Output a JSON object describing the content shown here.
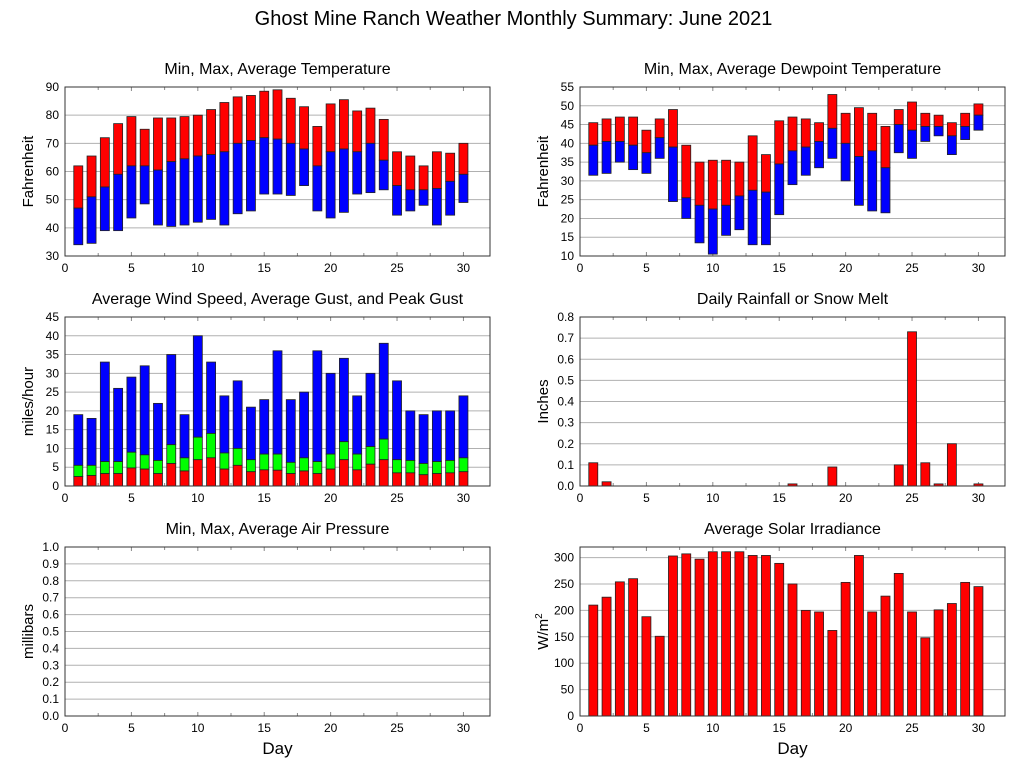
{
  "title": "Ghost Mine Ranch Weather Monthly Summary: June 2021",
  "chart_data": [
    {
      "id": "temperature",
      "type": "bar",
      "stacked_range": true,
      "title": "Min, Max, Average Temperature",
      "xlabel": "",
      "ylabel": "Fahrenheit",
      "xlim": [
        0,
        32
      ],
      "ylim": [
        30,
        90
      ],
      "xticks": [
        0,
        5,
        10,
        15,
        20,
        25,
        30
      ],
      "yticks": [
        30,
        40,
        50,
        60,
        70,
        80,
        90
      ],
      "ytick_labels": [
        "30",
        "40",
        "50",
        "60",
        "70",
        "80",
        "90"
      ],
      "grid": true,
      "x": [
        1,
        2,
        3,
        4,
        5,
        6,
        7,
        8,
        9,
        10,
        11,
        12,
        13,
        14,
        15,
        16,
        17,
        18,
        19,
        20,
        21,
        22,
        23,
        24,
        25,
        26,
        27,
        28,
        29,
        30
      ],
      "series": [
        {
          "name": "Max",
          "color": "#ff0000",
          "values": [
            62,
            65.5,
            72,
            77,
            79.5,
            75,
            79,
            79,
            79.5,
            80,
            82,
            84.5,
            86.5,
            87,
            88.5,
            89,
            86,
            83,
            76,
            84,
            85.5,
            81.5,
            82.5,
            78.5,
            67,
            65.5,
            62,
            67,
            66.5,
            70
          ]
        },
        {
          "name": "Average",
          "color": "#0000ff",
          "values": [
            47,
            51,
            54.5,
            59,
            62,
            62,
            60.5,
            63.5,
            64.5,
            65.5,
            66,
            67,
            70,
            71,
            72,
            71.5,
            70,
            68,
            62,
            67,
            68,
            67,
            70,
            64,
            55,
            53.5,
            53.5,
            54,
            56.5,
            59
          ]
        },
        {
          "name": "Min",
          "color": "#ffffff",
          "values": [
            34,
            34.5,
            39,
            39,
            43.5,
            48.5,
            41,
            40.5,
            41,
            42,
            43,
            41,
            45,
            46,
            52,
            52,
            51.5,
            55,
            46,
            43.5,
            45.5,
            52,
            52.5,
            53.5,
            44.5,
            46,
            48,
            41,
            44.5,
            49
          ]
        }
      ]
    },
    {
      "id": "dewpoint",
      "type": "bar",
      "stacked_range": true,
      "title": "Min, Max, Average Dewpoint Temperature",
      "xlabel": "",
      "ylabel": "Fahrenheit",
      "xlim": [
        0,
        32
      ],
      "ylim": [
        10,
        55
      ],
      "xticks": [
        0,
        5,
        10,
        15,
        20,
        25,
        30
      ],
      "yticks": [
        10,
        15,
        20,
        25,
        30,
        35,
        40,
        45,
        50,
        55
      ],
      "ytick_labels": [
        "10",
        "15",
        "20",
        "25",
        "30",
        "35",
        "40",
        "45",
        "50",
        "55"
      ],
      "grid": true,
      "x": [
        1,
        2,
        3,
        4,
        5,
        6,
        7,
        8,
        9,
        10,
        11,
        12,
        13,
        14,
        15,
        16,
        17,
        18,
        19,
        20,
        21,
        22,
        23,
        24,
        25,
        26,
        27,
        28,
        29,
        30
      ],
      "series": [
        {
          "name": "Max",
          "color": "#ff0000",
          "values": [
            45.5,
            46.5,
            47,
            47,
            43.5,
            46.5,
            49,
            39.5,
            35,
            35.5,
            35.5,
            35,
            42,
            37,
            46,
            47,
            46.5,
            45.5,
            53,
            48,
            49.5,
            48,
            44.5,
            49,
            51,
            48,
            47.5,
            45.5,
            48,
            50.5
          ]
        },
        {
          "name": "Average",
          "color": "#0000ff",
          "values": [
            39.5,
            40.5,
            40.5,
            39.5,
            37.5,
            41.5,
            39,
            25.5,
            23.5,
            22.5,
            23.5,
            26,
            27.5,
            27,
            34.5,
            38,
            39,
            40.5,
            44,
            40,
            36.5,
            38,
            33.5,
            45,
            43.5,
            44.5,
            44.5,
            42,
            44.5,
            47.5
          ]
        },
        {
          "name": "Min",
          "color": "#ffffff",
          "values": [
            31.5,
            32,
            35,
            33,
            32,
            36,
            24.5,
            20,
            13.5,
            10.5,
            15.5,
            17,
            13,
            13,
            21,
            29,
            31.5,
            33.5,
            36,
            30,
            23.5,
            22,
            21.5,
            37.5,
            36,
            40.5,
            42,
            37,
            41,
            43.5
          ]
        }
      ]
    },
    {
      "id": "wind",
      "type": "bar",
      "stacked_range": false,
      "title": "Average Wind Speed, Average Gust, and Peak Gust",
      "xlabel": "",
      "ylabel": "miles/hour",
      "xlim": [
        0,
        32
      ],
      "ylim": [
        0,
        45
      ],
      "xticks": [
        0,
        5,
        10,
        15,
        20,
        25,
        30
      ],
      "yticks": [
        0,
        5,
        10,
        15,
        20,
        25,
        30,
        35,
        40,
        45
      ],
      "ytick_labels": [
        "0",
        "5",
        "10",
        "15",
        "20",
        "25",
        "30",
        "35",
        "40",
        "45"
      ],
      "grid": true,
      "x": [
        1,
        2,
        3,
        4,
        5,
        6,
        7,
        8,
        9,
        10,
        11,
        12,
        13,
        14,
        15,
        16,
        17,
        18,
        19,
        20,
        21,
        22,
        23,
        24,
        25,
        26,
        27,
        28,
        29,
        30
      ],
      "series": [
        {
          "name": "Peak Gust",
          "color": "#0000ff",
          "values": [
            19,
            18,
            33,
            26,
            29,
            32,
            22,
            35,
            19,
            40,
            33,
            24,
            28,
            21,
            23,
            36,
            23,
            25,
            36,
            30,
            34,
            24,
            30,
            38,
            28,
            20,
            19,
            20,
            20,
            24
          ]
        },
        {
          "name": "Average Gust",
          "color": "#00ff00",
          "values": [
            5.5,
            5.5,
            6.5,
            6.5,
            9,
            8.3,
            6.8,
            11,
            7.5,
            13,
            14,
            8.8,
            10,
            7,
            8.5,
            8.5,
            6.3,
            7.5,
            6.5,
            8.5,
            11.8,
            8.5,
            10.5,
            12.5,
            7,
            6.8,
            6,
            6.5,
            6.8,
            7.5
          ]
        },
        {
          "name": "Average Wind Speed",
          "color": "#ff0000",
          "values": [
            2.5,
            2.8,
            3.3,
            3.3,
            4.8,
            4.5,
            3.3,
            6,
            4,
            7,
            7.5,
            4.5,
            5.5,
            3.8,
            4.3,
            4.2,
            3.3,
            4,
            3.3,
            4.5,
            7,
            4.3,
            5.8,
            7,
            3.5,
            3.5,
            3,
            3.3,
            3.5,
            3.8
          ]
        }
      ]
    },
    {
      "id": "rainfall",
      "type": "bar",
      "title": "Daily Rainfall or Snow Melt",
      "xlabel": "",
      "ylabel": "Inches",
      "xlim": [
        0,
        32
      ],
      "ylim": [
        0,
        0.8
      ],
      "xticks": [
        0,
        5,
        10,
        15,
        20,
        25,
        30
      ],
      "yticks": [
        0,
        0.1,
        0.2,
        0.3,
        0.4,
        0.5,
        0.6,
        0.7,
        0.8
      ],
      "ytick_labels": [
        "0.0",
        "0.1",
        "0.2",
        "0.3",
        "0.4",
        "0.5",
        "0.6",
        "0.7",
        "0.8"
      ],
      "grid": true,
      "x": [
        1,
        2,
        3,
        4,
        5,
        6,
        7,
        8,
        9,
        10,
        11,
        12,
        13,
        14,
        15,
        16,
        17,
        18,
        19,
        20,
        21,
        22,
        23,
        24,
        25,
        26,
        27,
        28,
        29,
        30
      ],
      "series": [
        {
          "name": "Rainfall",
          "color": "#ff0000",
          "values": [
            0.11,
            0.02,
            0,
            0,
            0,
            0,
            0,
            0,
            0,
            0,
            0,
            0,
            0,
            0,
            0,
            0.01,
            0,
            0,
            0.09,
            0,
            0,
            0,
            0,
            0.1,
            0.73,
            0.11,
            0.01,
            0.2,
            0,
            0.01
          ]
        }
      ]
    },
    {
      "id": "pressure",
      "type": "bar",
      "title": "Min, Max, Average Air Pressure",
      "xlabel": "Day",
      "ylabel": "millibars",
      "xlim": [
        0,
        32
      ],
      "ylim": [
        0,
        1
      ],
      "xticks": [
        0,
        5,
        10,
        15,
        20,
        25,
        30
      ],
      "yticks": [
        0,
        0.1,
        0.2,
        0.3,
        0.4,
        0.5,
        0.6,
        0.7,
        0.8,
        0.9,
        1.0
      ],
      "ytick_labels": [
        "0.0",
        "0.1",
        "0.2",
        "0.3",
        "0.4",
        "0.5",
        "0.6",
        "0.7",
        "0.8",
        "0.9",
        "1.0"
      ],
      "grid": true,
      "x": [],
      "series": []
    },
    {
      "id": "solar",
      "type": "bar",
      "title": "Average Solar Irradiance",
      "xlabel": "Day",
      "ylabel": "W/m",
      "ylabel_sup": "2",
      "xlim": [
        0,
        32
      ],
      "ylim": [
        0,
        320
      ],
      "xticks": [
        0,
        5,
        10,
        15,
        20,
        25,
        30
      ],
      "yticks": [
        0,
        50,
        100,
        150,
        200,
        250,
        300
      ],
      "ytick_labels": [
        "0",
        "50",
        "100",
        "150",
        "200",
        "250",
        "300"
      ],
      "grid": true,
      "x": [
        1,
        2,
        3,
        4,
        5,
        6,
        7,
        8,
        9,
        10,
        11,
        12,
        13,
        14,
        15,
        16,
        17,
        18,
        19,
        20,
        21,
        22,
        23,
        24,
        25,
        26,
        27,
        28,
        29,
        30
      ],
      "series": [
        {
          "name": "Solar Irradiance",
          "color": "#ff0000",
          "values": [
            210,
            225,
            254,
            260,
            188,
            151,
            303,
            307,
            297,
            311,
            311,
            311,
            304,
            304,
            289,
            250,
            200,
            197,
            162,
            253,
            304,
            197,
            227,
            270,
            197,
            148,
            201,
            213,
            253,
            245
          ]
        }
      ]
    }
  ]
}
